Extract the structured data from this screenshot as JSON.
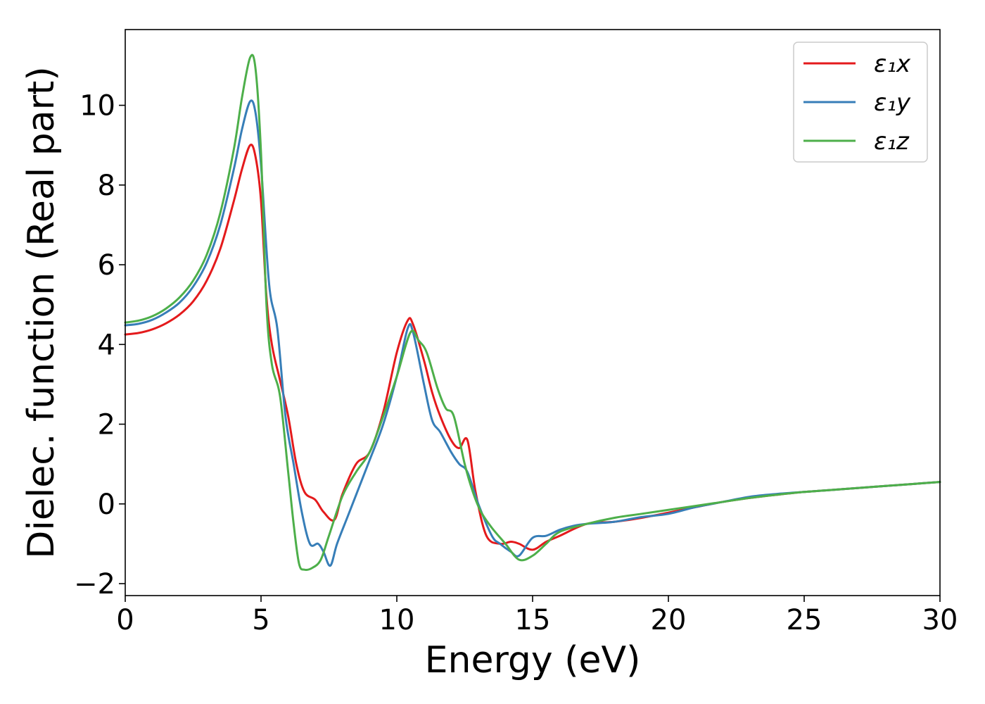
{
  "chart_data": {
    "type": "line",
    "title": "",
    "xlabel": "Energy (eV)",
    "ylabel": "Dielec. function (Real part)",
    "xlim": [
      0,
      30
    ],
    "ylim": [
      -2.3,
      11.9
    ],
    "xticks": [
      0,
      5,
      10,
      15,
      20,
      25,
      30
    ],
    "xtick_labels": [
      "0",
      "5",
      "10",
      "15",
      "20",
      "25",
      "30"
    ],
    "yticks": [
      -2,
      0,
      2,
      4,
      6,
      8,
      10
    ],
    "ytick_labels": [
      "−2",
      "0",
      "2",
      "4",
      "6",
      "8",
      "10"
    ],
    "grid": false,
    "legend_position": "top-right",
    "series": [
      {
        "name": "ε₁x",
        "color": "#e41a1c",
        "x": [
          0,
          0.5,
          1,
          1.5,
          2,
          2.5,
          3,
          3.5,
          4,
          4.3,
          4.6,
          4.8,
          5.0,
          5.2,
          5.4,
          5.7,
          6.0,
          6.3,
          6.6,
          7.0,
          7.3,
          7.7,
          8.0,
          8.5,
          9.0,
          9.5,
          10.0,
          10.4,
          10.6,
          11.0,
          11.3,
          11.6,
          12.0,
          12.3,
          12.6,
          12.9,
          13.3,
          13.8,
          14.2,
          14.5,
          15.0,
          15.5,
          16.0,
          17.0,
          18.0,
          19.0,
          20.0,
          21.0,
          22.0,
          23.0,
          24.0,
          25.0,
          26.0,
          27.0,
          28.0,
          29.0,
          30.0
        ],
        "y": [
          4.25,
          4.29,
          4.38,
          4.53,
          4.75,
          5.08,
          5.6,
          6.4,
          7.6,
          8.4,
          9.0,
          8.7,
          7.6,
          5.2,
          4.0,
          3.1,
          2.2,
          1.0,
          0.3,
          0.1,
          -0.2,
          -0.4,
          0.25,
          1.0,
          1.3,
          2.3,
          3.8,
          4.6,
          4.5,
          3.6,
          2.8,
          2.2,
          1.6,
          1.4,
          1.6,
          0.3,
          -0.8,
          -1.0,
          -0.95,
          -1.0,
          -1.15,
          -0.95,
          -0.8,
          -0.5,
          -0.45,
          -0.35,
          -0.22,
          -0.08,
          0.05,
          0.15,
          0.23,
          0.3,
          0.35,
          0.4,
          0.45,
          0.5,
          0.55
        ]
      },
      {
        "name": "ε₁y",
        "color": "#377eb8",
        "x": [
          0,
          0.5,
          1,
          1.5,
          2,
          2.5,
          3,
          3.5,
          4,
          4.3,
          4.6,
          4.8,
          5.0,
          5.3,
          5.6,
          5.9,
          6.2,
          6.5,
          6.8,
          7.1,
          7.3,
          7.55,
          7.8,
          8.2,
          8.6,
          9.0,
          9.5,
          10.0,
          10.4,
          10.6,
          11.0,
          11.3,
          11.6,
          12.0,
          12.3,
          12.6,
          13.0,
          13.5,
          13.8,
          14.2,
          14.5,
          15.0,
          15.5,
          16.0,
          16.5,
          17.0,
          18.0,
          19.0,
          20.0,
          21.0,
          22.0,
          23.0,
          24.0,
          25.0,
          26.0,
          27.0,
          28.0,
          29.0,
          30.0
        ],
        "y": [
          4.48,
          4.52,
          4.62,
          4.8,
          5.05,
          5.45,
          6.05,
          7.0,
          8.4,
          9.4,
          10.1,
          9.8,
          8.5,
          5.5,
          4.4,
          2.2,
          1.0,
          -0.2,
          -1.0,
          -1.0,
          -1.2,
          -1.55,
          -1.0,
          -0.3,
          0.4,
          1.1,
          2.0,
          3.2,
          4.4,
          4.3,
          3.0,
          2.1,
          1.8,
          1.3,
          1.0,
          0.8,
          0.0,
          -0.8,
          -1.0,
          -1.2,
          -1.3,
          -0.85,
          -0.8,
          -0.65,
          -0.55,
          -0.5,
          -0.45,
          -0.33,
          -0.25,
          -0.08,
          0.05,
          0.18,
          0.25,
          0.3,
          0.35,
          0.4,
          0.45,
          0.5,
          0.55
        ]
      },
      {
        "name": "ε₁z",
        "color": "#4daf4a",
        "x": [
          0,
          0.5,
          1,
          1.5,
          2,
          2.5,
          3,
          3.5,
          4,
          4.3,
          4.6,
          4.8,
          5.0,
          5.2,
          5.4,
          5.7,
          6.0,
          6.2,
          6.4,
          6.6,
          6.9,
          7.2,
          7.5,
          8.0,
          8.5,
          9.0,
          9.5,
          10.0,
          10.5,
          10.8,
          11.1,
          11.5,
          11.8,
          12.1,
          12.5,
          12.8,
          13.1,
          13.5,
          14.0,
          14.5,
          15.0,
          15.5,
          16.0,
          17.0,
          18.0,
          19.0,
          20.0,
          21.0,
          22.0,
          23.0,
          24.0,
          25.0,
          26.0,
          27.0,
          28.0,
          29.0,
          30.0
        ],
        "y": [
          4.55,
          4.6,
          4.71,
          4.9,
          5.18,
          5.6,
          6.25,
          7.3,
          8.9,
          10.2,
          11.2,
          10.9,
          8.8,
          5.0,
          3.5,
          2.7,
          0.8,
          -0.5,
          -1.5,
          -1.65,
          -1.6,
          -1.4,
          -0.8,
          0.2,
          0.8,
          1.3,
          2.2,
          3.2,
          4.3,
          4.1,
          3.8,
          2.9,
          2.4,
          2.2,
          1.0,
          0.3,
          -0.2,
          -0.6,
          -1.0,
          -1.4,
          -1.3,
          -1.0,
          -0.7,
          -0.5,
          -0.35,
          -0.25,
          -0.15,
          -0.05,
          0.05,
          0.15,
          0.23,
          0.3,
          0.35,
          0.4,
          0.45,
          0.5,
          0.55
        ]
      }
    ]
  }
}
